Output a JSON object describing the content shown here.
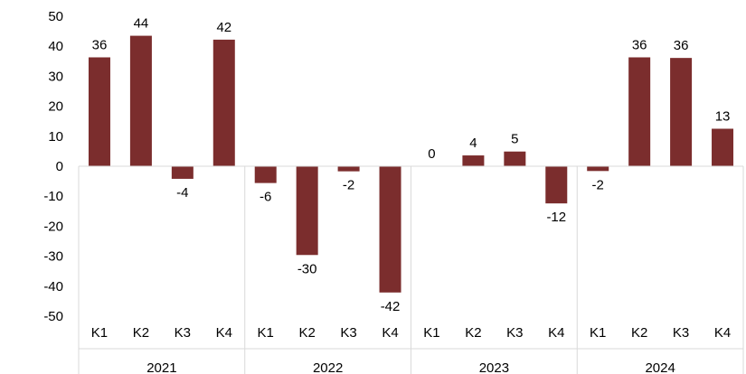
{
  "chart_data": {
    "type": "bar",
    "title": "",
    "xlabel": "",
    "ylabel": "",
    "ylim": [
      -50,
      50
    ],
    "yticks": [
      50,
      40,
      30,
      20,
      10,
      0,
      -10,
      -20,
      -30,
      -40,
      -50
    ],
    "grid": false,
    "legend": "none",
    "groups": [
      {
        "label": "2021",
        "categories": [
          "K1",
          "K2",
          "K3",
          "K4"
        ]
      },
      {
        "label": "2022",
        "categories": [
          "K1",
          "K2",
          "K3",
          "K4"
        ]
      },
      {
        "label": "2023",
        "categories": [
          "K1",
          "K2",
          "K3",
          "K4"
        ]
      },
      {
        "label": "2024",
        "categories": [
          "K1",
          "K2",
          "K3",
          "K4"
        ]
      }
    ],
    "values": [
      36.3,
      43.5,
      -4.2,
      42.2,
      -5.6,
      -29.6,
      -1.7,
      -42.1,
      0,
      3.6,
      4.9,
      -12.4,
      -1.6,
      36.3,
      36.1,
      12.5
    ],
    "labels": [
      "36",
      "44",
      "-4",
      "42",
      "-6",
      "-30",
      "-2",
      "-42",
      "0",
      "4",
      "5",
      "-12",
      "-2",
      "36",
      "36",
      "13"
    ],
    "bar_color": "#7b2d2d",
    "axis_color": "#d9d9d9"
  }
}
